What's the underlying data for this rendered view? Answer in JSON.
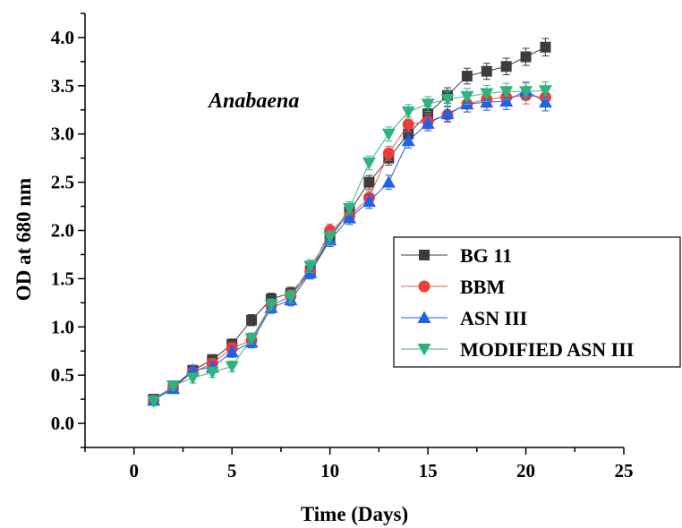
{
  "chart_data": {
    "type": "line",
    "annotation": "Anabaena",
    "xlabel": "Time (Days)",
    "ylabel": "OD at 680 nm",
    "xlim": [
      -2.5,
      25
    ],
    "ylim": [
      -0.25,
      4.25
    ],
    "xticks": [
      0,
      5,
      10,
      15,
      20,
      25
    ],
    "yticks": [
      0.0,
      0.5,
      1.0,
      1.5,
      2.0,
      2.5,
      3.0,
      3.5,
      4.0
    ],
    "ytick_labels": [
      "0.0",
      "0.5",
      "1.0",
      "1.5",
      "2.0",
      "2.5",
      "3.0",
      "3.5",
      "4.0"
    ],
    "legend_position": "center-right",
    "grid": false,
    "x": [
      1,
      2,
      3,
      4,
      5,
      6,
      7,
      8,
      9,
      10,
      11,
      12,
      13,
      14,
      15,
      16,
      17,
      18,
      19,
      20,
      21
    ],
    "series": [
      {
        "name": "BG 11",
        "marker": "square",
        "color": "#3d3d3d",
        "line_color": "#3d3d3d",
        "values": [
          0.25,
          0.38,
          0.55,
          0.66,
          0.82,
          1.07,
          1.29,
          1.35,
          1.58,
          1.92,
          2.2,
          2.5,
          2.75,
          3.0,
          3.21,
          3.4,
          3.6,
          3.65,
          3.7,
          3.8,
          3.9
        ]
      },
      {
        "name": "BBM",
        "marker": "circle",
        "color": "#ee3b3b",
        "line_color": "#e55a5a",
        "values": [
          0.24,
          0.37,
          0.53,
          0.62,
          0.78,
          0.86,
          1.22,
          1.32,
          1.57,
          2.0,
          2.15,
          2.34,
          2.8,
          3.1,
          3.13,
          3.2,
          3.31,
          3.36,
          3.38,
          3.4,
          3.38
        ]
      },
      {
        "name": "ASN III",
        "marker": "triangle-up",
        "color": "#1f62e6",
        "line_color": "#2a5bd6",
        "values": [
          0.24,
          0.36,
          0.55,
          0.58,
          0.74,
          0.84,
          1.2,
          1.28,
          1.56,
          1.9,
          2.13,
          2.3,
          2.5,
          2.93,
          3.11,
          3.21,
          3.31,
          3.33,
          3.34,
          3.45,
          3.33
        ]
      },
      {
        "name": "MODIFIED ASN III",
        "marker": "triangle-down",
        "color": "#2fb37c",
        "line_color": "#3fb28a",
        "values": [
          0.23,
          0.39,
          0.47,
          0.53,
          0.59,
          0.88,
          1.23,
          1.31,
          1.63,
          1.93,
          2.23,
          2.7,
          3.0,
          3.23,
          3.31,
          3.36,
          3.39,
          3.42,
          3.44,
          3.44,
          3.45
        ]
      }
    ]
  }
}
